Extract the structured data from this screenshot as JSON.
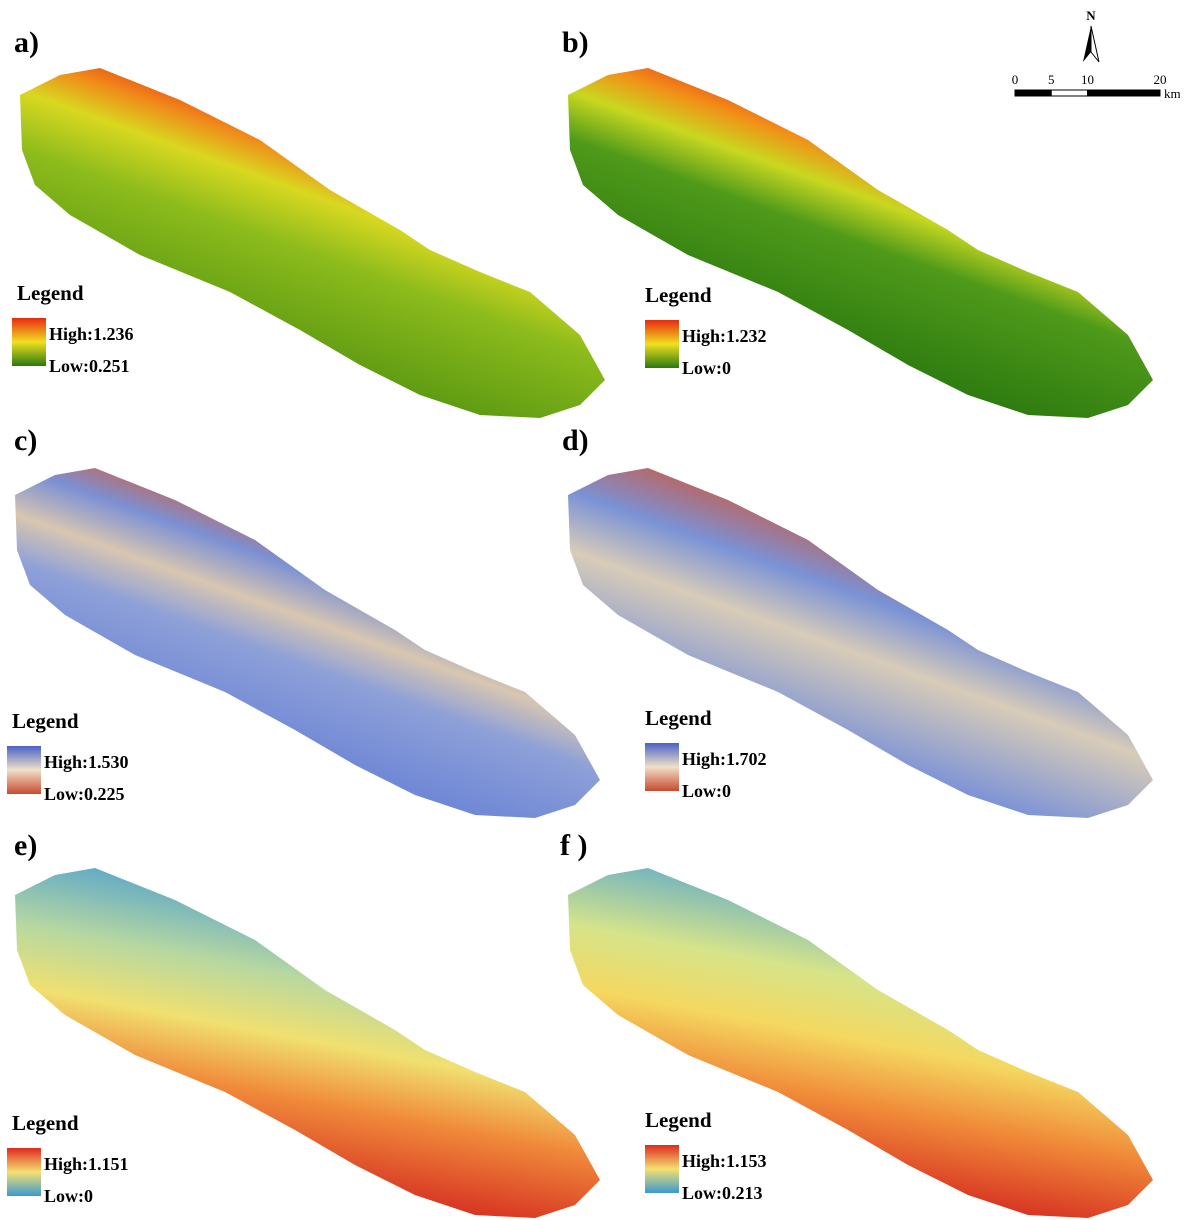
{
  "panels": [
    {
      "label": "a)",
      "legend_title": "Legend",
      "high": "High:1.236",
      "low": "Low:0.251"
    },
    {
      "label": "b)",
      "legend_title": "Legend",
      "high": "High:1.232",
      "low": "Low:0"
    },
    {
      "label": "c)",
      "legend_title": "Legend",
      "high": "High:1.530",
      "low": "Low:0.225"
    },
    {
      "label": "d)",
      "legend_title": "Legend",
      "high": "High:1.702",
      "low": "Low:0"
    },
    {
      "label": "e)",
      "legend_title": "Legend",
      "high": "High:1.151",
      "low": "Low:0"
    },
    {
      "label": "f )",
      "legend_title": "Legend",
      "high": "High:1.153",
      "low": "Low:0.213"
    }
  ],
  "north_arrow": "N",
  "scale_bar": {
    "ticks": [
      0,
      5,
      10,
      20
    ],
    "unit": "km"
  }
}
